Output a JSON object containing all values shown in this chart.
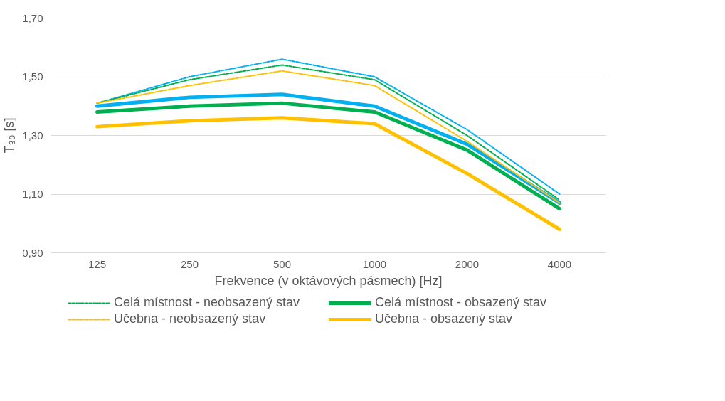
{
  "chart_data": {
    "type": "line",
    "xlabel": "Frekvence (v oktávových pásmech) [Hz]",
    "ylabel": "T₃₀ [s]",
    "categories": [
      "125",
      "250",
      "500",
      "1000",
      "2000",
      "4000"
    ],
    "ylim": [
      0.9,
      1.7
    ],
    "yticks": [
      {
        "value": 0.9,
        "label": "0,90"
      },
      {
        "value": 1.1,
        "label": "1,10"
      },
      {
        "value": 1.3,
        "label": "1,30"
      },
      {
        "value": 1.5,
        "label": "1,50"
      },
      {
        "value": 1.7,
        "label": "1,70"
      }
    ],
    "grid": "y",
    "legend": "bottom",
    "marker": "none",
    "series": [
      {
        "name": "Celá místnost - neobsazený stav",
        "color": "#00b050",
        "line_style": "dashed",
        "values": [
          1.41,
          1.49,
          1.54,
          1.49,
          1.3,
          1.08
        ]
      },
      {
        "name": "Celá místnost - obsazený stav",
        "color": "#00b050",
        "line_style": "solid",
        "values": [
          1.38,
          1.4,
          1.41,
          1.38,
          1.25,
          1.05
        ]
      },
      {
        "name": "Učebna - neobsazený stav",
        "color": "#ffc000",
        "line_style": "dashed",
        "values": [
          1.41,
          1.47,
          1.52,
          1.47,
          1.28,
          1.07
        ]
      },
      {
        "name": "Učebna - obsazený stav",
        "color": "#ffc000",
        "line_style": "solid",
        "values": [
          1.33,
          1.35,
          1.36,
          1.34,
          1.17,
          0.98
        ]
      },
      {
        "color": "#00b0f0",
        "line_style": "dashed",
        "values": [
          1.41,
          1.5,
          1.56,
          1.5,
          1.32,
          1.1
        ]
      },
      {
        "color": "#00b0f0",
        "line_style": "solid",
        "values": [
          1.4,
          1.43,
          1.44,
          1.4,
          1.27,
          1.07
        ]
      }
    ]
  }
}
